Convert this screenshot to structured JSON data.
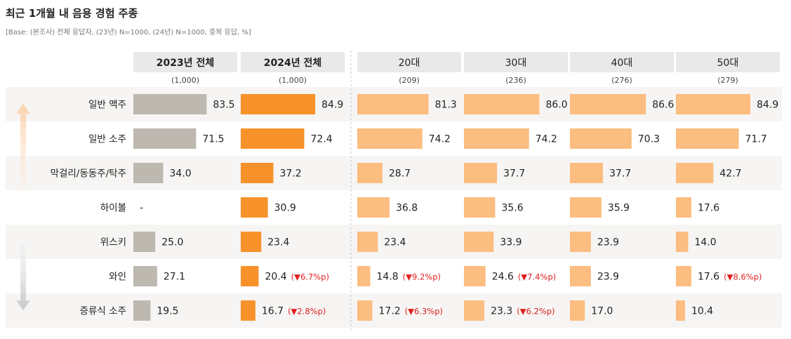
{
  "title": "최근 1개월 내 음용 경험 주종",
  "subtitle": "[Base: (본조사) 전체 응답자, (23년) N=1000, (24년) N=1000, 중복 응답, %]",
  "chart_data": {
    "type": "bar",
    "orientation": "horizontal",
    "categories": [
      "일반 맥주",
      "일반 소주",
      "막걸리/동동주/탁주",
      "하이볼",
      "위스키",
      "와인",
      "증류식 소주"
    ],
    "series": [
      {
        "name": "2023년 전체",
        "n": "(1,000)",
        "color": "#bdb8b0",
        "header_bold": true,
        "values": [
          83.5,
          71.5,
          34.0,
          null,
          25.0,
          27.1,
          19.5
        ],
        "labels": [
          "83.5",
          "71.5",
          "34.0",
          "-",
          "25.0",
          "27.1",
          "19.5"
        ],
        "notes": [
          "",
          "",
          "",
          "",
          "",
          "",
          ""
        ]
      },
      {
        "name": "2024년 전체",
        "n": "(1,000)",
        "color": "#f7922b",
        "header_bold": true,
        "values": [
          84.9,
          72.4,
          37.2,
          30.9,
          23.4,
          20.4,
          16.7
        ],
        "labels": [
          "84.9",
          "72.4",
          "37.2",
          "30.9",
          "23.4",
          "20.4",
          "16.7"
        ],
        "notes": [
          "",
          "",
          "",
          "",
          "",
          "(▼6.7%p)",
          "(▼2.8%p)"
        ]
      },
      {
        "name": "20대",
        "n": "(209)",
        "color": "#fcbd80",
        "header_bold": false,
        "values": [
          81.3,
          74.2,
          28.7,
          36.8,
          23.4,
          14.8,
          17.2
        ],
        "labels": [
          "81.3",
          "74.2",
          "28.7",
          "36.8",
          "23.4",
          "14.8",
          "17.2"
        ],
        "notes": [
          "",
          "",
          "",
          "",
          "",
          "(▼9.2%p)",
          "(▼6.3%p)"
        ]
      },
      {
        "name": "30대",
        "n": "(236)",
        "color": "#fcbd80",
        "header_bold": false,
        "values": [
          86.0,
          74.2,
          37.7,
          35.6,
          33.9,
          24.6,
          23.3
        ],
        "labels": [
          "86.0",
          "74.2",
          "37.7",
          "35.6",
          "33.9",
          "24.6",
          "23.3"
        ],
        "notes": [
          "",
          "",
          "",
          "",
          "",
          "(▼7.4%p)",
          "(▼6.2%p)"
        ]
      },
      {
        "name": "40대",
        "n": "(276)",
        "color": "#fcbd80",
        "header_bold": false,
        "values": [
          86.6,
          70.3,
          37.7,
          35.9,
          23.9,
          23.9,
          17.0
        ],
        "labels": [
          "86.6",
          "70.3",
          "37.7",
          "35.9",
          "23.9",
          "23.9",
          "17.0"
        ],
        "notes": [
          "",
          "",
          "",
          "",
          "",
          "",
          ""
        ]
      },
      {
        "name": "50대",
        "n": "(279)",
        "color": "#fcbd80",
        "header_bold": false,
        "values": [
          84.9,
          71.7,
          42.7,
          17.6,
          14.0,
          17.6,
          10.4
        ],
        "labels": [
          "84.9",
          "71.7",
          "42.7",
          "17.6",
          "14.0",
          "17.6",
          "10.4"
        ],
        "notes": [
          "",
          "",
          "",
          "",
          "",
          "(▼8.6%p)",
          ""
        ]
      }
    ],
    "xlim": [
      0,
      100
    ],
    "note_color": "#e02020"
  }
}
